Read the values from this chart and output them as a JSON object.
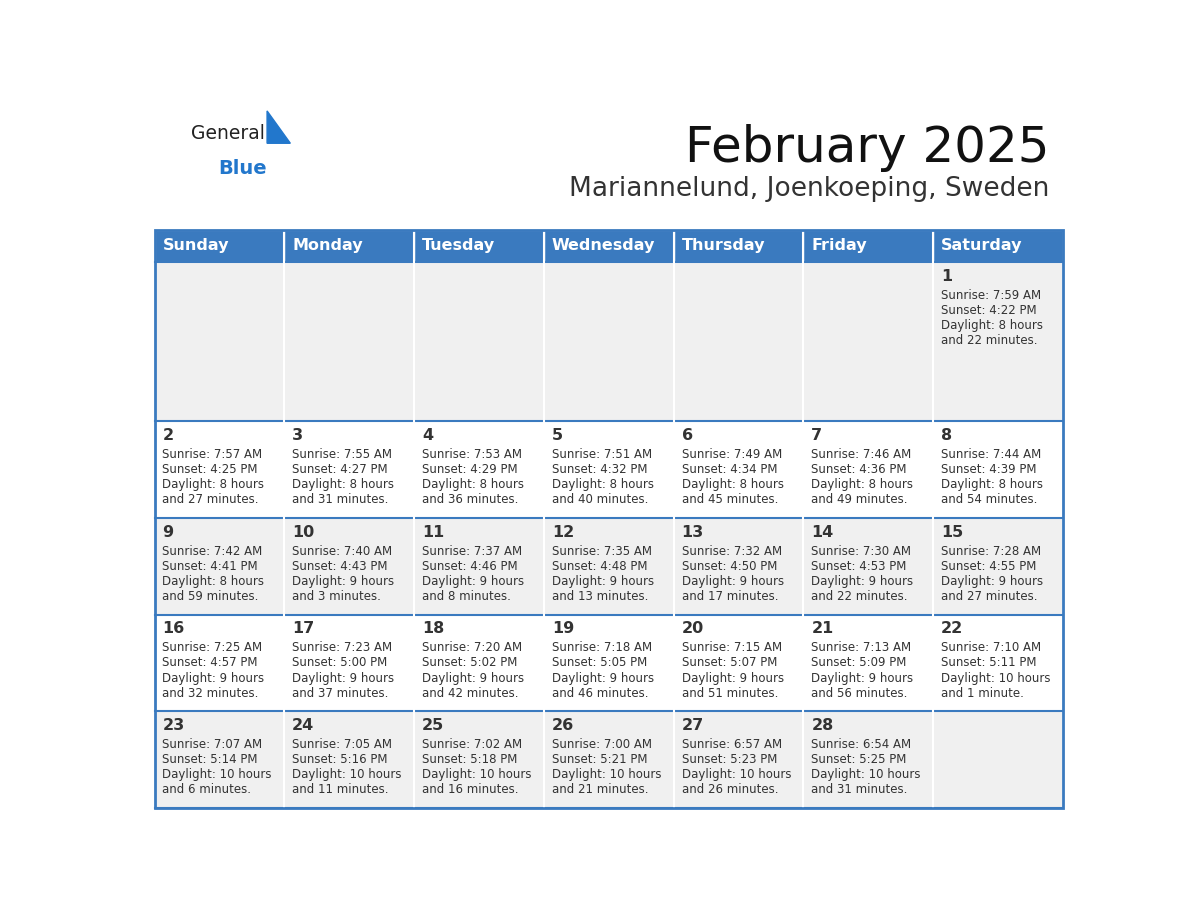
{
  "title": "February 2025",
  "subtitle": "Mariannelund, Joenkoeping, Sweden",
  "days_of_week": [
    "Sunday",
    "Monday",
    "Tuesday",
    "Wednesday",
    "Thursday",
    "Friday",
    "Saturday"
  ],
  "header_bg": "#3a7abf",
  "header_text": "#ffffff",
  "row_bg_odd": "#f0f0f0",
  "row_bg_even": "#ffffff",
  "cell_text": "#333333",
  "border_color": "#3a7abf",
  "title_color": "#111111",
  "subtitle_color": "#333333",
  "logo_general_color": "#222222",
  "logo_blue_color": "#2277cc",
  "calendar_data": [
    [
      null,
      null,
      null,
      null,
      null,
      null,
      {
        "day": 1,
        "sunrise": "7:59 AM",
        "sunset": "4:22 PM",
        "daylight": "8 hours and 22 minutes."
      }
    ],
    [
      {
        "day": 2,
        "sunrise": "7:57 AM",
        "sunset": "4:25 PM",
        "daylight": "8 hours and 27 minutes."
      },
      {
        "day": 3,
        "sunrise": "7:55 AM",
        "sunset": "4:27 PM",
        "daylight": "8 hours and 31 minutes."
      },
      {
        "day": 4,
        "sunrise": "7:53 AM",
        "sunset": "4:29 PM",
        "daylight": "8 hours and 36 minutes."
      },
      {
        "day": 5,
        "sunrise": "7:51 AM",
        "sunset": "4:32 PM",
        "daylight": "8 hours and 40 minutes."
      },
      {
        "day": 6,
        "sunrise": "7:49 AM",
        "sunset": "4:34 PM",
        "daylight": "8 hours and 45 minutes."
      },
      {
        "day": 7,
        "sunrise": "7:46 AM",
        "sunset": "4:36 PM",
        "daylight": "8 hours and 49 minutes."
      },
      {
        "day": 8,
        "sunrise": "7:44 AM",
        "sunset": "4:39 PM",
        "daylight": "8 hours and 54 minutes."
      }
    ],
    [
      {
        "day": 9,
        "sunrise": "7:42 AM",
        "sunset": "4:41 PM",
        "daylight": "8 hours and 59 minutes."
      },
      {
        "day": 10,
        "sunrise": "7:40 AM",
        "sunset": "4:43 PM",
        "daylight": "9 hours and 3 minutes."
      },
      {
        "day": 11,
        "sunrise": "7:37 AM",
        "sunset": "4:46 PM",
        "daylight": "9 hours and 8 minutes."
      },
      {
        "day": 12,
        "sunrise": "7:35 AM",
        "sunset": "4:48 PM",
        "daylight": "9 hours and 13 minutes."
      },
      {
        "day": 13,
        "sunrise": "7:32 AM",
        "sunset": "4:50 PM",
        "daylight": "9 hours and 17 minutes."
      },
      {
        "day": 14,
        "sunrise": "7:30 AM",
        "sunset": "4:53 PM",
        "daylight": "9 hours and 22 minutes."
      },
      {
        "day": 15,
        "sunrise": "7:28 AM",
        "sunset": "4:55 PM",
        "daylight": "9 hours and 27 minutes."
      }
    ],
    [
      {
        "day": 16,
        "sunrise": "7:25 AM",
        "sunset": "4:57 PM",
        "daylight": "9 hours and 32 minutes."
      },
      {
        "day": 17,
        "sunrise": "7:23 AM",
        "sunset": "5:00 PM",
        "daylight": "9 hours and 37 minutes."
      },
      {
        "day": 18,
        "sunrise": "7:20 AM",
        "sunset": "5:02 PM",
        "daylight": "9 hours and 42 minutes."
      },
      {
        "day": 19,
        "sunrise": "7:18 AM",
        "sunset": "5:05 PM",
        "daylight": "9 hours and 46 minutes."
      },
      {
        "day": 20,
        "sunrise": "7:15 AM",
        "sunset": "5:07 PM",
        "daylight": "9 hours and 51 minutes."
      },
      {
        "day": 21,
        "sunrise": "7:13 AM",
        "sunset": "5:09 PM",
        "daylight": "9 hours and 56 minutes."
      },
      {
        "day": 22,
        "sunrise": "7:10 AM",
        "sunset": "5:11 PM",
        "daylight": "10 hours and 1 minute."
      }
    ],
    [
      {
        "day": 23,
        "sunrise": "7:07 AM",
        "sunset": "5:14 PM",
        "daylight": "10 hours and 6 minutes."
      },
      {
        "day": 24,
        "sunrise": "7:05 AM",
        "sunset": "5:16 PM",
        "daylight": "10 hours and 11 minutes."
      },
      {
        "day": 25,
        "sunrise": "7:02 AM",
        "sunset": "5:18 PM",
        "daylight": "10 hours and 16 minutes."
      },
      {
        "day": 26,
        "sunrise": "7:00 AM",
        "sunset": "5:21 PM",
        "daylight": "10 hours and 21 minutes."
      },
      {
        "day": 27,
        "sunrise": "6:57 AM",
        "sunset": "5:23 PM",
        "daylight": "10 hours and 26 minutes."
      },
      {
        "day": 28,
        "sunrise": "6:54 AM",
        "sunset": "5:25 PM",
        "daylight": "10 hours and 31 minutes."
      },
      null
    ]
  ]
}
